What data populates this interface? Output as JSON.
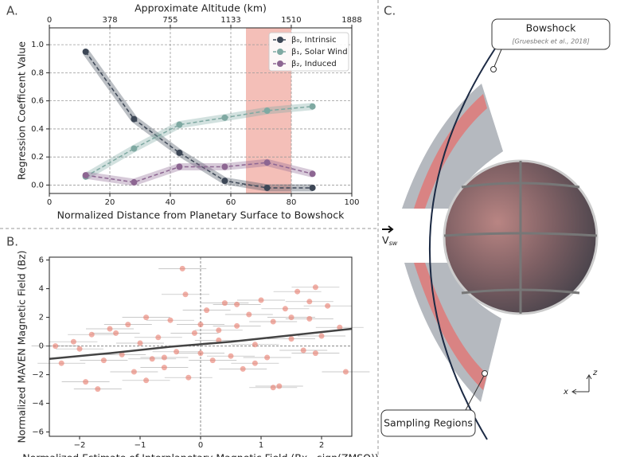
{
  "panels": [
    "A.",
    "B.",
    "C."
  ],
  "chart_data": [
    {
      "type": "line",
      "xlabel": "Normalized Distance from Planetary Surface to Bowshock",
      "ylabel": "Regression Coefficent Value",
      "x2label": "Approximate Altitude (km)",
      "x": [
        12,
        28,
        43,
        58,
        72,
        87
      ],
      "series": [
        {
          "name": "β₀, Intrinsic",
          "color": "#3d4756",
          "values": [
            0.95,
            0.47,
            0.23,
            0.03,
            -0.02,
            -0.02
          ]
        },
        {
          "name": "β₁, Solar Wind",
          "color": "#7fa9a2",
          "values": [
            0.06,
            0.26,
            0.43,
            0.48,
            0.53,
            0.56
          ]
        },
        {
          "name": "β₂, Induced",
          "color": "#8d6692",
          "values": [
            0.07,
            0.02,
            0.13,
            0.13,
            0.16,
            0.08
          ]
        }
      ],
      "shaded_region": [
        65,
        80
      ],
      "shaded_color": "#f0a9a0",
      "xlim": [
        0,
        100
      ],
      "xticks": [
        0,
        20,
        40,
        60,
        80,
        100
      ],
      "x2lim": [
        0,
        1888
      ],
      "x2ticks": [
        0,
        378,
        755,
        1133,
        1510,
        1888
      ],
      "ylim": [
        -0.06,
        1.12
      ],
      "yticks": [
        {
          "value": 0,
          "label": "0.0"
        },
        {
          "value": 0.2,
          "label": "0.2"
        },
        {
          "value": 0.4,
          "label": "0.4"
        },
        {
          "value": 0.6,
          "label": "0.6"
        },
        {
          "value": 0.8,
          "label": "0.8"
        },
        {
          "value": 1.0,
          "label": "1.0"
        }
      ],
      "grid": true,
      "legend": "upper right"
    },
    {
      "type": "scatter",
      "xlabel": "Normalized Estimate of Interplanetary Magnetic Field (Bx · sign(ZMSO))",
      "ylabel": "Normalized MAVEN Magnetic Field (Bz)",
      "x": [
        -2.3,
        -2.1,
        -1.9,
        -1.8,
        -1.6,
        -1.5,
        -1.3,
        -1.2,
        -1.1,
        -1.0,
        -0.9,
        -0.8,
        -0.7,
        -0.6,
        -0.5,
        -0.4,
        -0.3,
        -0.2,
        -0.1,
        0,
        0.1,
        0.2,
        0.3,
        0.4,
        0.5,
        0.6,
        0.7,
        0.8,
        0.9,
        1.0,
        1.1,
        1.2,
        1.3,
        1.4,
        1.5,
        1.6,
        1.7,
        1.8,
        1.9,
        2.0,
        2.1,
        2.3,
        -2.0,
        -1.4,
        -0.6,
        -0.25,
        0.3,
        0.9,
        1.5,
        1.9,
        -1.7,
        -0.9,
        0.0,
        0.6,
        1.2,
        1.8,
        -2.4,
        2.4
      ],
      "values": [
        -1.2,
        0.3,
        -2.5,
        0.8,
        -1.0,
        1.2,
        -0.6,
        1.5,
        -1.8,
        0.2,
        2.0,
        -0.9,
        0.6,
        -1.5,
        1.8,
        -0.4,
        5.4,
        -2.2,
        0.9,
        -0.5,
        2.5,
        -1.0,
        0.4,
        3.0,
        -0.7,
        1.4,
        -1.6,
        2.2,
        0.1,
        3.2,
        -0.8,
        1.7,
        -2.8,
        2.6,
        0.5,
        3.8,
        -0.3,
        1.9,
        4.1,
        0.7,
        2.8,
        1.3,
        -0.2,
        0.9,
        -0.8,
        3.6,
        1.1,
        -1.2,
        2.0,
        -0.5,
        -3.0,
        -2.4,
        1.5,
        2.9,
        -2.9,
        3.1,
        0.0,
        -1.8
      ],
      "color": "#e8796b",
      "trend": {
        "x": [
          -2.5,
          -1.5,
          -0.5,
          0.5,
          1.5,
          2.5
        ],
        "values": [
          -0.9,
          -0.5,
          -0.05,
          0.3,
          0.75,
          1.2
        ],
        "color": "#444444"
      },
      "xlim": [
        -2.5,
        2.5
      ],
      "xticks": [
        {
          "value": -2,
          "label": "−2"
        },
        {
          "value": -1,
          "label": "−1"
        },
        0,
        1,
        2
      ],
      "ylim": [
        -6.3,
        6.2
      ],
      "yticks": [
        {
          "value": -6,
          "label": "−6"
        },
        {
          "value": -4,
          "label": "−4"
        },
        {
          "value": -2,
          "label": "−2"
        },
        0,
        2,
        4,
        6
      ],
      "zero_lines": true
    }
  ],
  "diagram": {
    "bowshock": "Bowshock",
    "citation": "[Gruesbeck et al., 2018]",
    "velocity": "V",
    "velocity_sub": "sw",
    "sampling": "Sampling Regions",
    "axis_z": "z",
    "axis_x": "x"
  }
}
